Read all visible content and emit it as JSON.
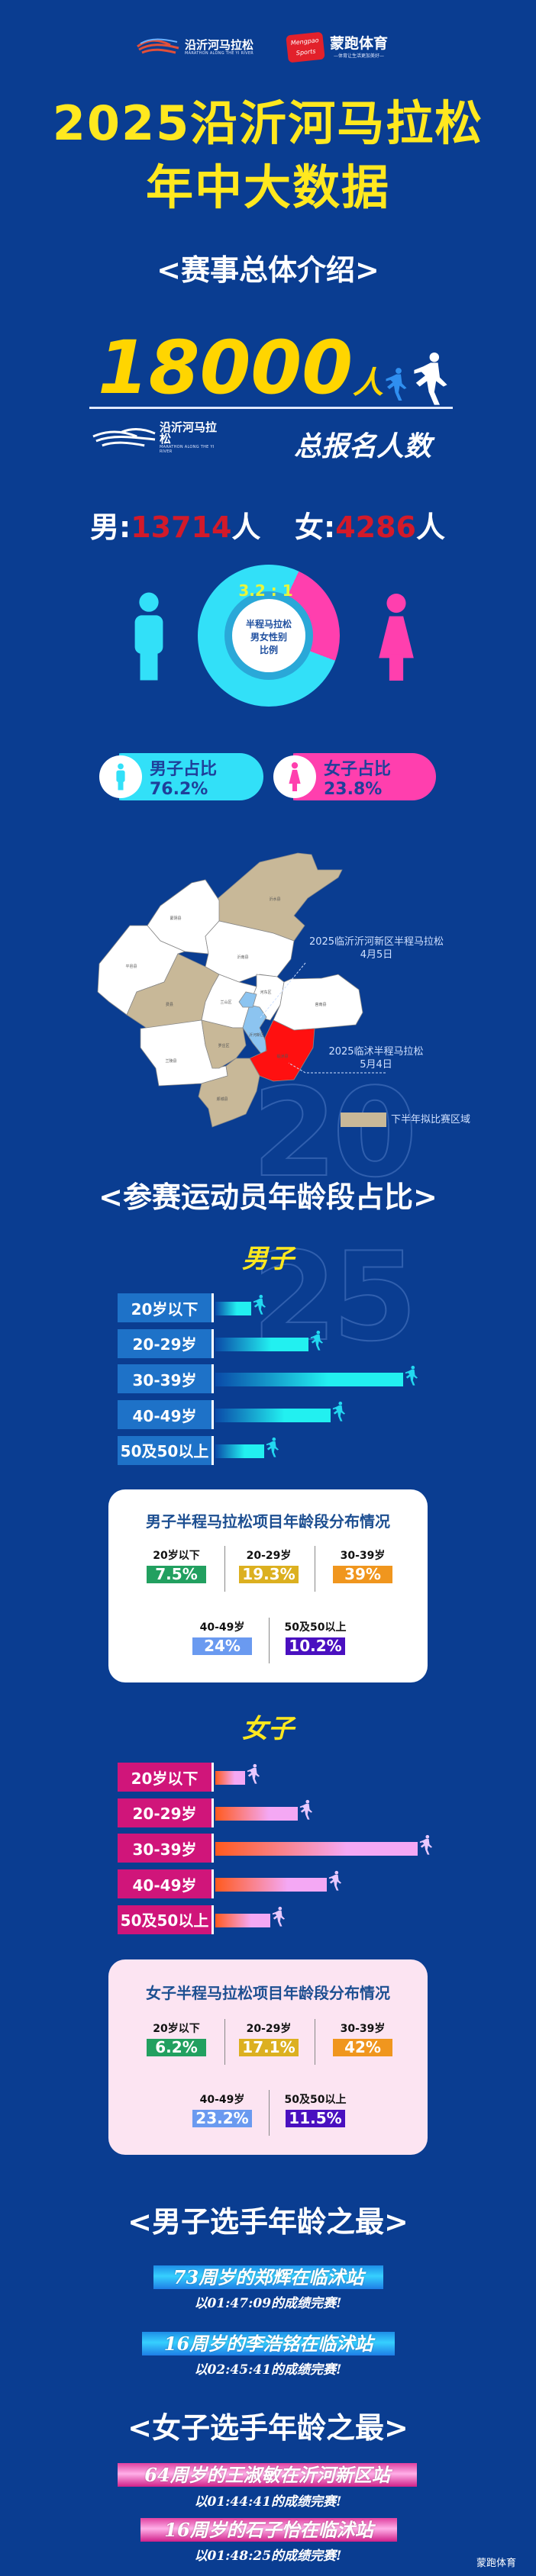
{
  "header": {
    "logo_yihe": {
      "name": "沿沂河马拉松",
      "subtitle": "MARATHON ALONG THE YI RIVER"
    },
    "logo_mengpao": {
      "badge": "Mengpao Sports",
      "name": "蒙跑体育",
      "slogan": "—体育让生活更加美好—"
    },
    "title_line1": "2025沿沂河马拉松",
    "title_line2": "年中大数据"
  },
  "overview": {
    "heading": "<赛事总体介绍>",
    "total": "18000",
    "total_unit": "人",
    "total_label": "总报名人数",
    "male_label": "男:",
    "male_count": "13714",
    "female_label": "女:",
    "female_count": "4286",
    "unit": "人",
    "ratio": "3.2 : 1",
    "donut_center": [
      "半程马拉松",
      "男女性别",
      "比例"
    ],
    "male_share_label": "男子占比76.2%",
    "female_share_label": "女子占比23.8%",
    "male_share": 76.2,
    "female_share": 23.8,
    "colors": {
      "male": "#32e0f8",
      "female": "#ff3fae",
      "accent": "#ffe81f",
      "count": "#d21a2a"
    }
  },
  "map": {
    "event1": {
      "name": "2025临沂沂河新区半程马拉松",
      "date": "4月5日"
    },
    "event2": {
      "name": "2025临沭半程马拉松",
      "date": "5月4日"
    },
    "legend": "下半年拟比赛区域",
    "districts": [
      "沂水县",
      "蒙阴县",
      "平邑县",
      "沂南县",
      "费县",
      "兰山区",
      "河东区",
      "莒南县",
      "沂河新区",
      "临沭县",
      "兰陵县",
      "罗庄区",
      "郯城县"
    ],
    "colors": {
      "planned": "#c8b898",
      "event1": "#8cc4f0",
      "event2": "#ff1010",
      "other": "#ffffff"
    },
    "watermark": "2025"
  },
  "age": {
    "heading": "<参赛运动员年龄段占比>",
    "categories": [
      "20岁以下",
      "20-29岁",
      "30-39岁",
      "40-49岁",
      "50及50以上"
    ],
    "male": {
      "title": "男子",
      "card_title": "男子半程马拉松项目年龄段分布情况",
      "values": [
        "7.5%",
        "19.3%",
        "39%",
        "24%",
        "10.2%"
      ],
      "numbers": [
        7.5,
        19.3,
        39,
        24,
        10.2
      ]
    },
    "female": {
      "title": "女子",
      "card_title": "女子半程马拉松项目年龄段分布情况",
      "values": [
        "6.2%",
        "17.1%",
        "42%",
        "23.2%",
        "11.5%"
      ],
      "numbers": [
        6.2,
        17.1,
        42,
        23.2,
        11.5
      ]
    },
    "value_colors": [
      "#22a060",
      "#dcb020",
      "#f0961e",
      "#6a9af0",
      "#4a10c0"
    ]
  },
  "records": {
    "male_heading": "<男子选手年龄之最>",
    "male": [
      {
        "title": "73周岁的郑辉在临沭站",
        "result": "以01:47:09的成绩完赛!"
      },
      {
        "title": "16周岁的李浩铭在临沭站",
        "result": "以02:45:41的成绩完赛!"
      }
    ],
    "female_heading": "<女子选手年龄之最>",
    "female": [
      {
        "title": "64周岁的王淑敏在沂河新区站",
        "result": "以01:44:41的成绩完赛!"
      },
      {
        "title": "16周岁的石子怡在临沭站",
        "result": "以01:48:25的成绩完赛!"
      }
    ]
  },
  "footer": {
    "watermark": "蒙跑体育"
  }
}
